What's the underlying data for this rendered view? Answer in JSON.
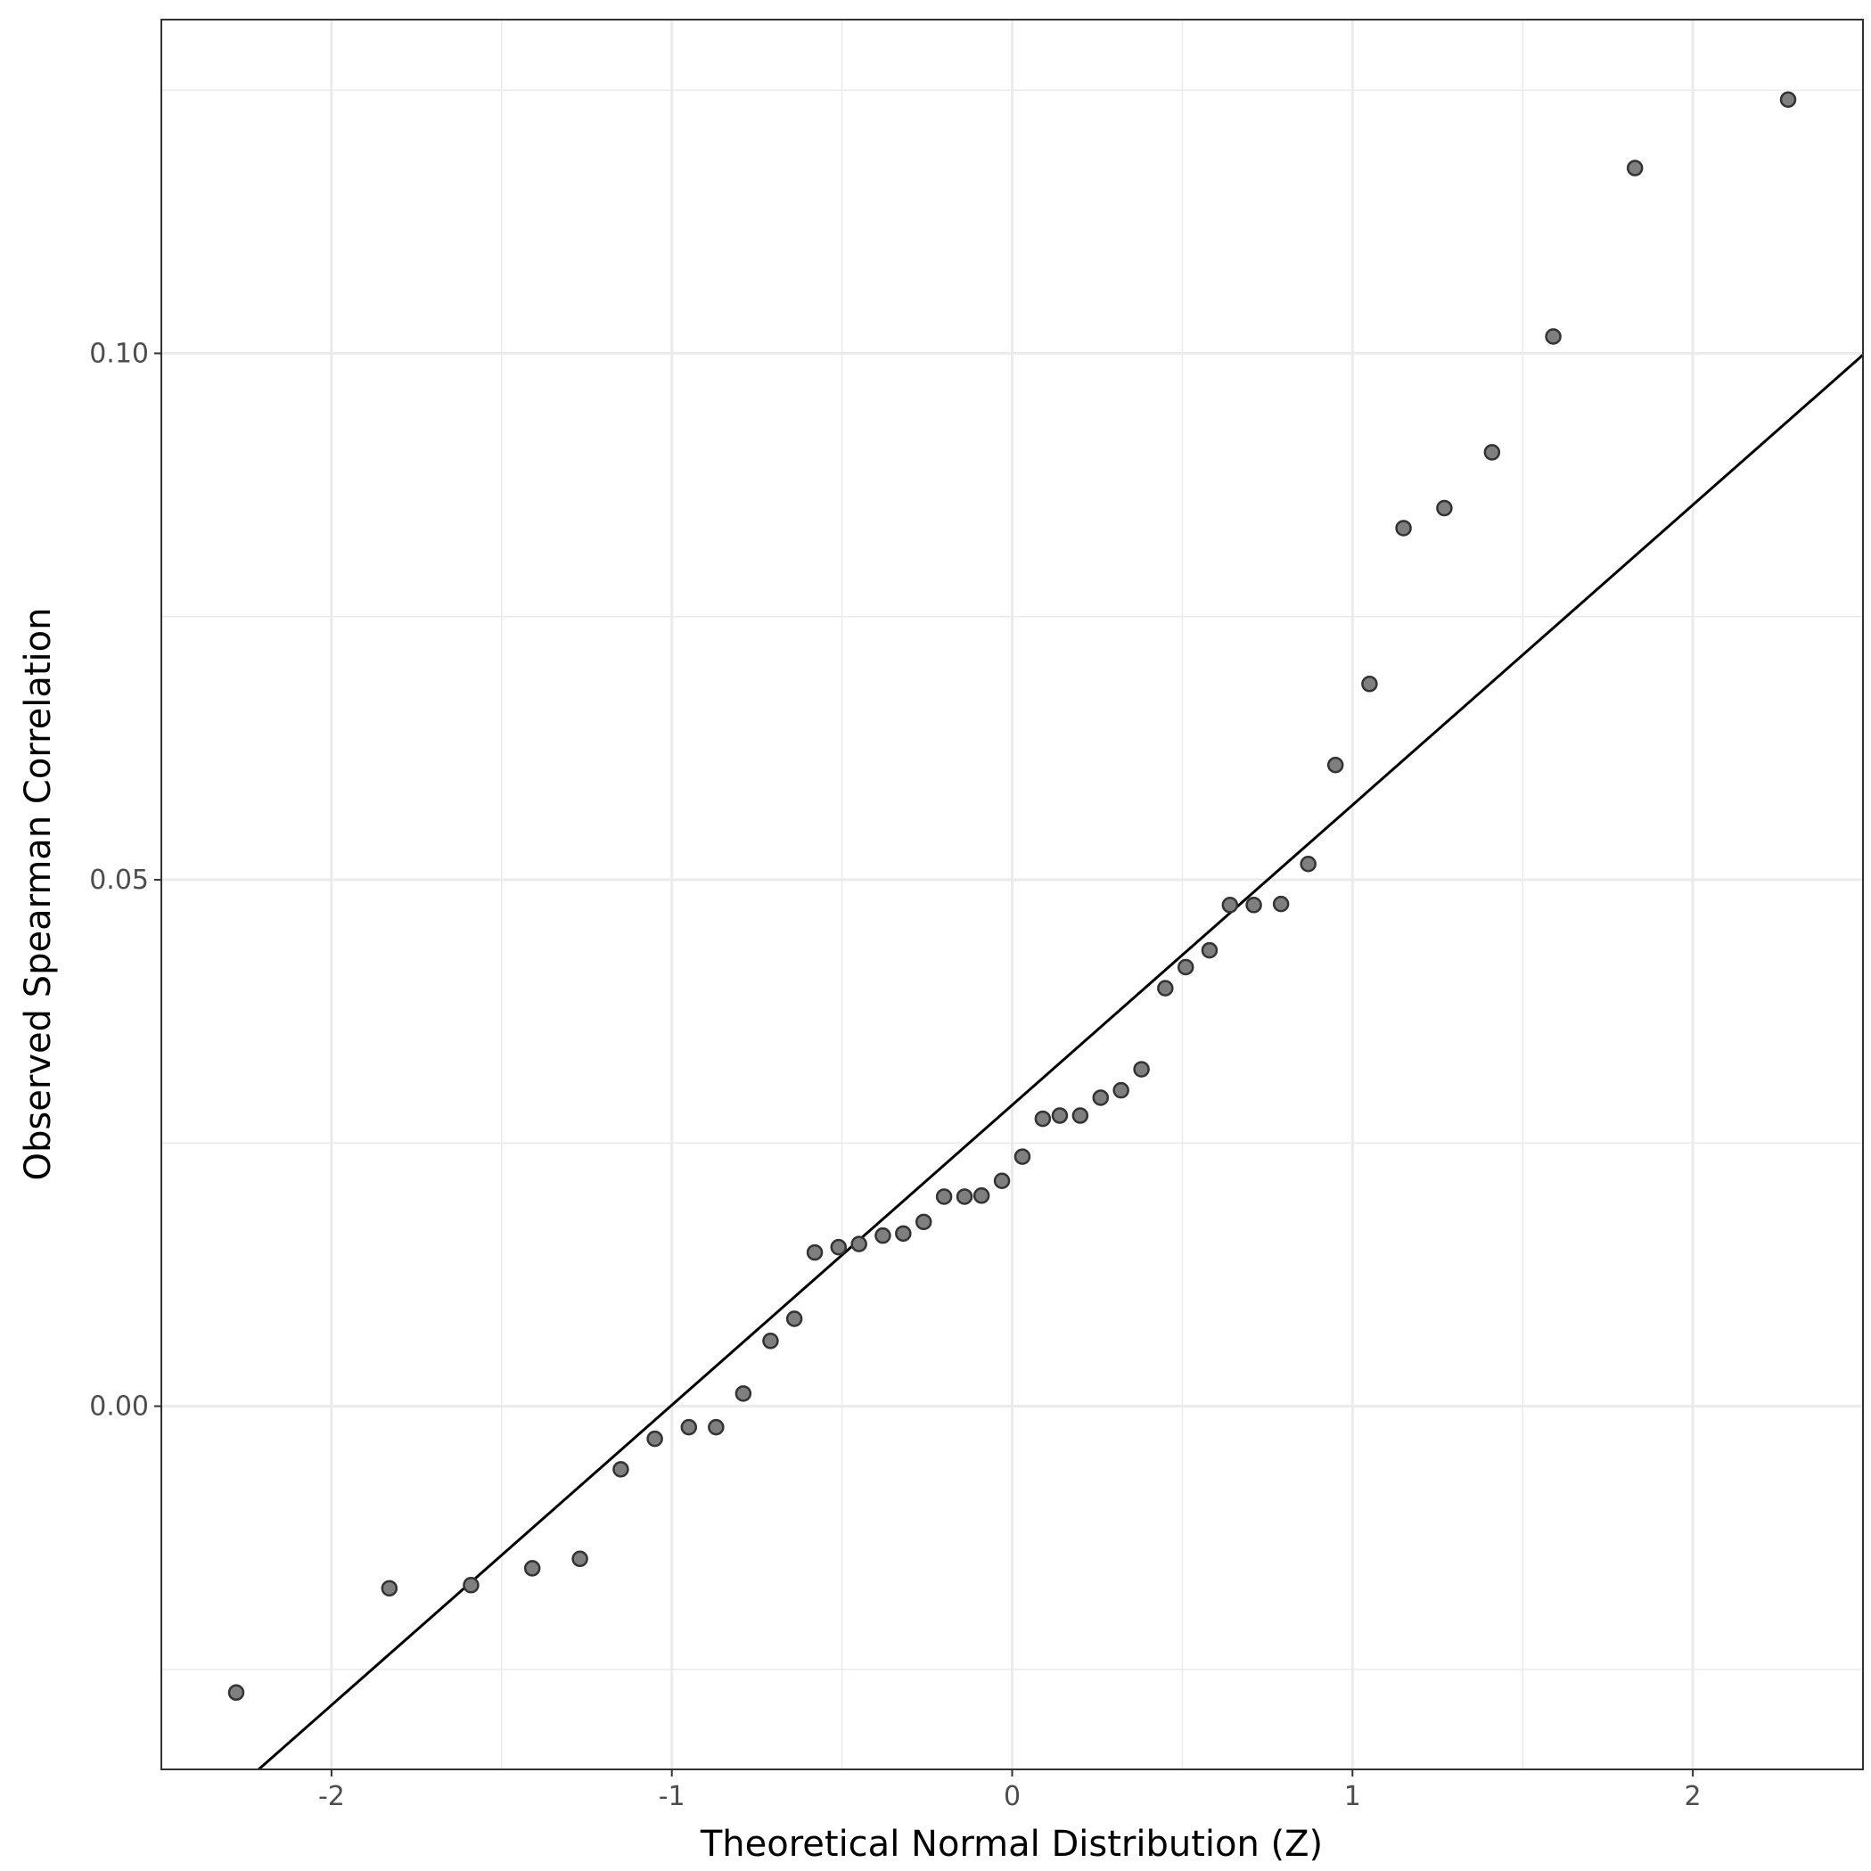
{
  "chart_data": {
    "type": "scatter",
    "title": "",
    "xlabel": "Theoretical Normal Distribution (Z)",
    "ylabel": "Observed Spearman Correlation",
    "xlim": [
      -2.5,
      2.5
    ],
    "ylim": [
      -0.0345,
      0.1317
    ],
    "x_ticks": [
      -2,
      -1,
      0,
      1,
      2
    ],
    "x_tick_labels": [
      "-2",
      "-1",
      "0",
      "1",
      "2"
    ],
    "y_ticks": [
      0.0,
      0.05,
      0.1
    ],
    "y_tick_labels": [
      "0.00",
      "0.05",
      "0.10"
    ],
    "grid": true,
    "legend": "none",
    "colors": {
      "points": "#7f7f7f",
      "point_outline": "#333333",
      "line": "#000000",
      "grid": "#ebebeb",
      "panel_border": "#333333"
    },
    "reference_line": {
      "slope": 0.0285,
      "intercept": 0.0286
    },
    "series": [
      {
        "x": [
          -2.28,
          -1.83,
          -1.59,
          -1.41,
          -1.27,
          -1.15,
          -1.05,
          -0.95,
          -0.87,
          -0.79,
          -0.71,
          -0.64,
          -0.58,
          -0.51,
          -0.45,
          -0.38,
          -0.32,
          -0.26,
          -0.2,
          -0.14,
          -0.09,
          -0.03,
          0.03,
          0.09,
          0.14,
          0.2,
          0.26,
          0.32,
          0.38,
          0.45,
          0.51,
          0.58,
          0.64,
          0.71,
          0.79,
          0.87,
          0.95,
          1.05,
          1.15,
          1.27,
          1.41,
          1.59,
          1.83,
          2.28
        ],
        "y": [
          -0.0272,
          -0.0173,
          -0.017,
          -0.0154,
          -0.0145,
          -0.006,
          -0.0031,
          -0.002,
          -0.002,
          0.0012,
          0.0062,
          0.0083,
          0.0146,
          0.0151,
          0.0154,
          0.0162,
          0.0164,
          0.0175,
          0.0199,
          0.0199,
          0.02,
          0.0214,
          0.0237,
          0.0273,
          0.0276,
          0.0276,
          0.0293,
          0.03,
          0.032,
          0.0397,
          0.0417,
          0.0433,
          0.0476,
          0.0476,
          0.0477,
          0.0515,
          0.0609,
          0.0686,
          0.0834,
          0.0853,
          0.0906,
          0.1016,
          0.1176,
          0.1241
        ]
      }
    ]
  }
}
